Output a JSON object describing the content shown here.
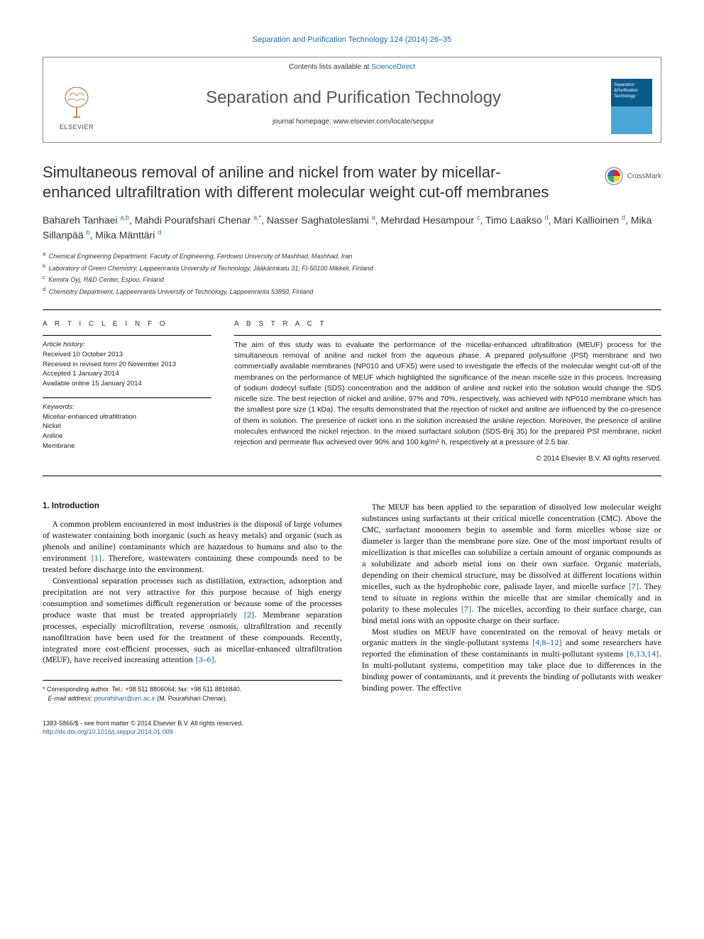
{
  "citation_line": "Separation and Purification Technology 124 (2014) 26–35",
  "contents_prefix": "Contents lists available at ",
  "contents_link": "ScienceDirect",
  "journal_name": "Separation and Purification Technology",
  "homepage_prefix": "journal homepage: ",
  "homepage_url": "www.elsevier.com/locate/seppur",
  "publisher": "ELSEVIER",
  "cover_text_line1": "Separation",
  "cover_text_line2": "&Purification",
  "cover_text_line3": "Technology",
  "crossmark_label": "CrossMark",
  "article_title": "Simultaneous removal of aniline and nickel from water by micellar-enhanced ultrafiltration with different molecular weight cut-off membranes",
  "authors_html": "Bahareh Tanhaei <sup>a,b</sup>, Mahdi Pourafshari Chenar <sup>a,*</sup>, Nasser Saghatoleslami <sup>a</sup>, Mehrdad Hesampour <sup>c</sup>, Timo Laakso <sup>d</sup>, Mari Kallioinen <sup>d</sup>, Mika Sillanpää <sup>b</sup>, Mika Mänttäri <sup>d</sup>",
  "affiliations": [
    {
      "sup": "a",
      "text": "Chemical Engineering Department, Faculty of Engineering, Ferdowsi University of Mashhad, Mashhad, Iran"
    },
    {
      "sup": "b",
      "text": "Laboratory of Green Chemistry, Lappeenranta University of Technology, Jääkärinkatu 31, FI-50100 Mikkeli, Finland"
    },
    {
      "sup": "c",
      "text": "Kemira Oyj, R&D Center, Espoo, Finland"
    },
    {
      "sup": "d",
      "text": "Chemistry Department, Lappeenranta University of Technology, Lappeenranta 53850, Finland"
    }
  ],
  "info_heading": "A R T I C L E   I N F O",
  "history_label": "Article history:",
  "history": [
    "Received 10 October 2013",
    "Received in revised form 20 November 2013",
    "Accepted 1 January 2014",
    "Available online 15 January 2014"
  ],
  "keywords_label": "Keywords:",
  "keywords": [
    "Micellar-enhanced ultrafiltration",
    "Nickel",
    "Aniline",
    "Membrane"
  ],
  "abstract_heading": "A B S T R A C T",
  "abstract_text": "The aim of this study was to evaluate the performance of the micellar-enhanced ultrafiltration (MEUF) process for the simultaneous removal of aniline and nickel from the aqueous phase. A prepared polysulfone (PSf) membrane and two commercially available membranes (NP010 and UFX5) were used to investigate the effects of the molecular weight cut-off of the membranes on the performance of MEUF which highlighted the significance of the mean micelle size in this process. Increasing of sodium dodecyl sulfate (SDS) concentration and the addition of aniline and nickel into the solution would change the SDS micelle size. The best rejection of nickel and aniline, 97% and 70%, respectively, was achieved with NP010 membrane which has the smallest pore size (1 kDa). The results demonstrated that the rejection of nickel and aniline are influenced by the co-presence of them in solution. The presence of nickel ions in the solution increased the aniline rejection. Moreover, the presence of aniline molecules enhanced the nickel rejection. In the mixed surfactant solution (SDS-Brij 35) for the prepared PSf membrane, nickel rejection and permeate flux achieved over 90% and 100 kg/m² h, respectively at a pressure of 2.5 bar.",
  "copyright": "© 2014 Elsevier B.V. All rights reserved.",
  "section1_heading": "1. Introduction",
  "col1_paragraphs": [
    "A common problem encountered in most industries is the disposal of large volumes of wastewater containing both inorganic (such as heavy metals) and organic (such as phenols and aniline) contaminants which are hazardous to humans and also to the environment <span class=\"ref\">[1]</span>. Therefore, wastewaters containing these compounds need to be treated before discharge into the environment.",
    "Conventional separation processes such as distillation, extraction, adsorption and precipitation are not very attractive for this purpose because of high energy consumption and sometimes difficult regeneration or because some of the processes produce waste that must be treated appropriately <span class=\"ref\">[2]</span>. Membrane separation processes, especially microfiltration, reverse osmosis, ultrafiltration and recently nanofiltration have been used for the treatment of these compounds. Recently, integrated more cost-efficient processes, such as micellar-enhanced ultrafiltration (MEUF), have received increasing attention <span class=\"ref\">[3–6]</span>."
  ],
  "col2_paragraphs": [
    "The MEUF has been applied to the separation of dissolved low molecular weight substances using surfactants at their critical micelle concentration (CMC). Above the CMC, surfactant monomers begin to assemble and form micelles whose size or diameter is larger than the membrane pore size. One of the most important results of micellization is that micelles can solubilize a certain amount of organic compounds as a solubilizate and adsorb metal ions on their own surface. Organic materials, depending on their chemical structure, may be dissolved at different locations within micelles, such as the hydrophobic core, palisade layer, and micelle surface <span class=\"ref\">[7]</span>. They tend to situate in regions within the micelle that are similar chemically and in polarity to these molecules <span class=\"ref\">[7]</span>. The micelles, according to their surface charge, can bind metal ions with an opposite charge on their surface.",
    "Most studies on MEUF have concentrated on the removal of heavy metals or organic matters in the single-pollutant systems <span class=\"ref\">[4,8–12]</span> and some researchers have reported the elimination of these contaminants in multi-pollutant systems <span class=\"ref\">[6,13,14]</span>. In multi-pollutant systems, competition may take place due to differences in the binding power of contaminants, and it prevents the binding of pollutants with weaker binding power. The effective"
  ],
  "corr_marker": "*",
  "corr_text": "Corresponding author. Tel.: +98 511 8806064; fax: +98 511 8816840.",
  "email_label": "E-mail address:",
  "email": "pourafshari@um.ac.ir",
  "email_owner": "(M. Pourafshari Chenar).",
  "footer_issn": "1383-5866/$ - see front matter © 2014 Elsevier B.V. All rights reserved.",
  "footer_doi": "http://dx.doi.org/10.1016/j.seppur.2014.01.009",
  "colors": {
    "link": "#1a6ba8",
    "heading": "#323232",
    "cover_top": "#0a5a8a",
    "cover_bottom": "#4aa8d8"
  }
}
